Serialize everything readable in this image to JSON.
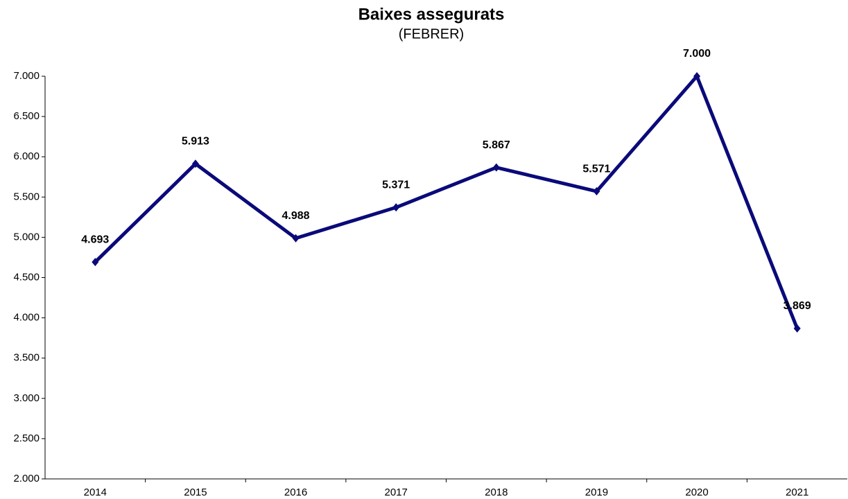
{
  "chart_data": {
    "type": "line",
    "title": "Baixes assegurats",
    "subtitle": "(FEBRER)",
    "categories": [
      "2014",
      "2015",
      "2016",
      "2017",
      "2018",
      "2019",
      "2020",
      "2021"
    ],
    "series": [
      {
        "color": "#0a0a7a",
        "values": [
          4693,
          5913,
          4988,
          5371,
          5867,
          5571,
          7000,
          3869
        ],
        "value_labels": [
          "4.693",
          "5.913",
          "4.988",
          "5.371",
          "5.867",
          "5.571",
          "7.000",
          "3.869"
        ]
      }
    ],
    "ylim": [
      2000,
      7000
    ],
    "yticks": [
      {
        "value": 2000,
        "label": "2.000"
      },
      {
        "value": 2500,
        "label": "2.500"
      },
      {
        "value": 3000,
        "label": "3.000"
      },
      {
        "value": 3500,
        "label": "3.500"
      },
      {
        "value": 4000,
        "label": "4.000"
      },
      {
        "value": 4500,
        "label": "4.500"
      },
      {
        "value": 5000,
        "label": "5.000"
      },
      {
        "value": 5500,
        "label": "5.500"
      },
      {
        "value": 6000,
        "label": "6.000"
      },
      {
        "value": 6500,
        "label": "6.500"
      },
      {
        "value": 7000,
        "label": "7.000"
      }
    ],
    "grid": false
  }
}
